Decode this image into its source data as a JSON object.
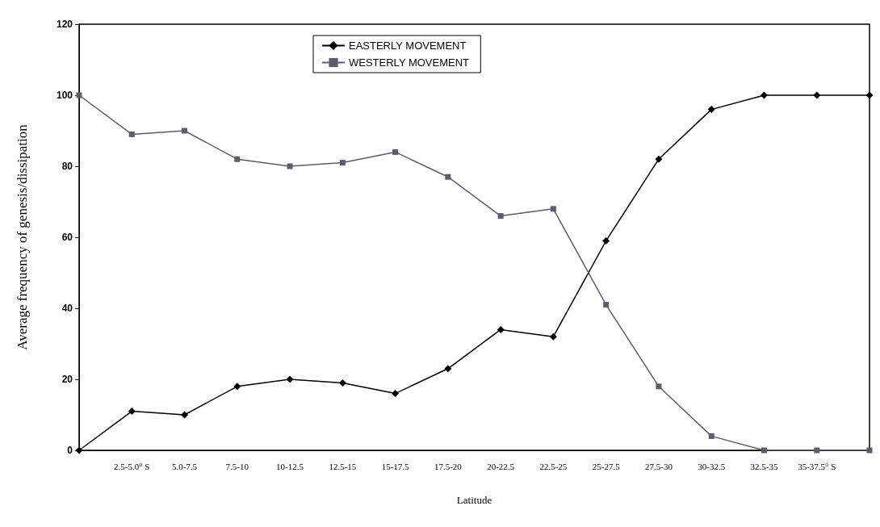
{
  "chart_data": {
    "type": "line",
    "xlabel": "Latitude",
    "ylabel": "Average frequency of genesis/dissipation",
    "categories": [
      null,
      "2.5-5.0° S",
      "5.0-7.5",
      "7.5-10",
      "10-12.5",
      "12.5-15",
      "15-17.5",
      "17.5-20",
      "20-22.5",
      "22.5-25",
      "25-27.5",
      "27.5-30",
      "30-32.5",
      "32.5-35",
      "35-37.5° S",
      null
    ],
    "series": [
      {
        "name": "EASTERLY MOVEMENT",
        "color": "#000000",
        "marker": "diamond",
        "values": [
          0,
          11,
          10,
          18,
          20,
          19,
          16,
          23,
          34,
          32,
          59,
          82,
          96,
          100,
          100,
          100
        ]
      },
      {
        "name": "WESTERLY MOVEMENT",
        "color": "#5c5c6e",
        "marker": "square",
        "values": [
          100,
          89,
          90,
          82,
          80,
          81,
          84,
          77,
          66,
          68,
          41,
          18,
          4,
          0,
          0,
          0
        ]
      }
    ],
    "ylim": [
      0,
      120
    ],
    "yticks": [
      0,
      20,
      40,
      60,
      80,
      100,
      120
    ],
    "grid": false,
    "legend": "top",
    "line_style": "solid"
  }
}
